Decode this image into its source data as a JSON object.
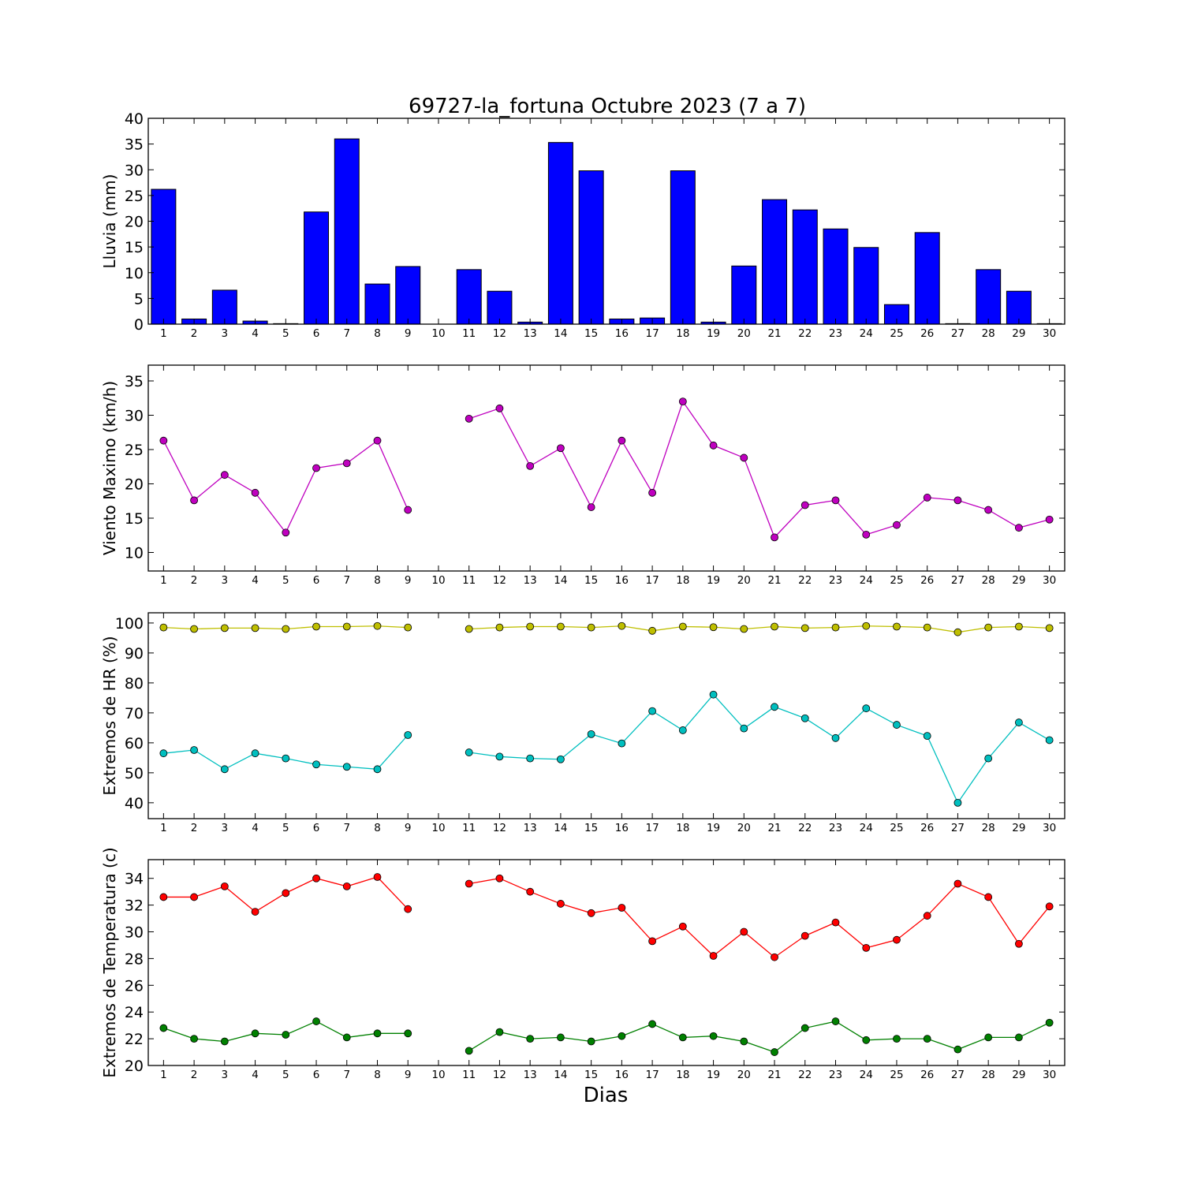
{
  "figure": {
    "title": "69727-la_fortuna Octubre 2023  (7 a 7)",
    "xlabel": "Dias"
  },
  "chart_data": [
    {
      "type": "bar",
      "ylabel": "Lluvia (mm)",
      "ylim": [
        0,
        40
      ],
      "yticks": [
        0,
        5,
        10,
        15,
        20,
        25,
        30,
        35,
        40
      ],
      "categories": [
        1,
        2,
        3,
        4,
        5,
        6,
        7,
        8,
        9,
        10,
        11,
        12,
        13,
        14,
        15,
        16,
        17,
        18,
        19,
        20,
        21,
        22,
        23,
        24,
        25,
        26,
        27,
        28,
        29,
        30
      ],
      "series": [
        {
          "color": "#0000ff",
          "values": [
            26.2,
            1.0,
            6.6,
            0.6,
            0.1,
            21.8,
            36.0,
            7.8,
            11.2,
            0,
            10.6,
            6.4,
            0.4,
            35.3,
            29.8,
            1.0,
            1.2,
            29.8,
            0.4,
            11.3,
            24.2,
            22.2,
            18.5,
            14.9,
            3.8,
            17.8,
            0.1,
            10.6,
            6.4,
            0.1
          ]
        }
      ]
    },
    {
      "type": "line",
      "ylabel": "Viento Maximo (km/h)",
      "ylim": [
        7.3,
        37.3
      ],
      "yticks": [
        10,
        15,
        20,
        25,
        30,
        35
      ],
      "categories": [
        1,
        2,
        3,
        4,
        5,
        6,
        7,
        8,
        9,
        10,
        11,
        12,
        13,
        14,
        15,
        16,
        17,
        18,
        19,
        20,
        21,
        22,
        23,
        24,
        25,
        26,
        27,
        28,
        29,
        30
      ],
      "series": [
        {
          "color": "#bf00bf",
          "values": [
            26.3,
            17.6,
            21.3,
            18.7,
            12.9,
            22.3,
            23.0,
            26.3,
            16.2,
            null,
            29.5,
            31.0,
            22.6,
            25.2,
            16.6,
            26.3,
            18.7,
            32.0,
            25.6,
            23.8,
            12.2,
            16.9,
            17.6,
            12.6,
            14.0,
            18.0,
            17.6,
            16.2,
            13.6,
            14.8
          ]
        }
      ]
    },
    {
      "type": "line",
      "ylabel": "Extremos de HR (%)",
      "ylim": [
        34.7,
        103.4
      ],
      "yticks": [
        40,
        50,
        60,
        70,
        80,
        90,
        100
      ],
      "categories": [
        1,
        2,
        3,
        4,
        5,
        6,
        7,
        8,
        9,
        10,
        11,
        12,
        13,
        14,
        15,
        16,
        17,
        18,
        19,
        20,
        21,
        22,
        23,
        24,
        25,
        26,
        27,
        28,
        29,
        30
      ],
      "series": [
        {
          "color": "#bfbf00",
          "values": [
            98.5,
            98.0,
            98.3,
            98.3,
            98.0,
            98.8,
            98.8,
            99.0,
            98.5,
            null,
            98.0,
            98.5,
            98.8,
            98.8,
            98.5,
            99.0,
            97.4,
            98.8,
            98.6,
            98.0,
            98.8,
            98.3,
            98.5,
            99.0,
            98.8,
            98.5,
            96.9,
            98.5,
            98.8,
            98.3
          ]
        },
        {
          "color": "#00bfbf",
          "values": [
            56.5,
            57.6,
            51.2,
            56.5,
            54.8,
            52.8,
            52.0,
            51.2,
            62.6,
            null,
            56.8,
            55.4,
            54.8,
            54.5,
            62.9,
            59.8,
            70.6,
            64.2,
            76.1,
            64.8,
            72.0,
            68.2,
            61.6,
            71.5,
            66.0,
            62.3,
            40.0,
            54.8,
            66.8,
            60.9
          ]
        }
      ]
    },
    {
      "type": "line",
      "ylabel": "Extremos de Temperatura (c)",
      "ylim": [
        20,
        35.4
      ],
      "yticks": [
        20,
        22,
        24,
        26,
        28,
        30,
        32,
        34
      ],
      "categories": [
        1,
        2,
        3,
        4,
        5,
        6,
        7,
        8,
        9,
        10,
        11,
        12,
        13,
        14,
        15,
        16,
        17,
        18,
        19,
        20,
        21,
        22,
        23,
        24,
        25,
        26,
        27,
        28,
        29,
        30
      ],
      "series": [
        {
          "color": "#ff0000",
          "values": [
            32.6,
            32.6,
            33.4,
            31.5,
            32.9,
            34.0,
            33.4,
            34.1,
            31.7,
            null,
            33.6,
            34.0,
            33.0,
            32.1,
            31.4,
            31.8,
            29.3,
            30.4,
            28.2,
            30.0,
            28.1,
            29.7,
            30.7,
            28.8,
            29.4,
            31.2,
            33.6,
            32.6,
            29.1,
            31.9
          ]
        },
        {
          "color": "#008000",
          "values": [
            22.8,
            22.0,
            21.8,
            22.4,
            22.3,
            23.3,
            22.1,
            22.4,
            22.4,
            null,
            21.1,
            22.5,
            22.0,
            22.1,
            21.8,
            22.2,
            23.1,
            22.1,
            22.2,
            21.8,
            21.0,
            22.8,
            23.3,
            21.9,
            22.0,
            22.0,
            21.2,
            22.1,
            22.1,
            23.2
          ]
        }
      ]
    }
  ]
}
